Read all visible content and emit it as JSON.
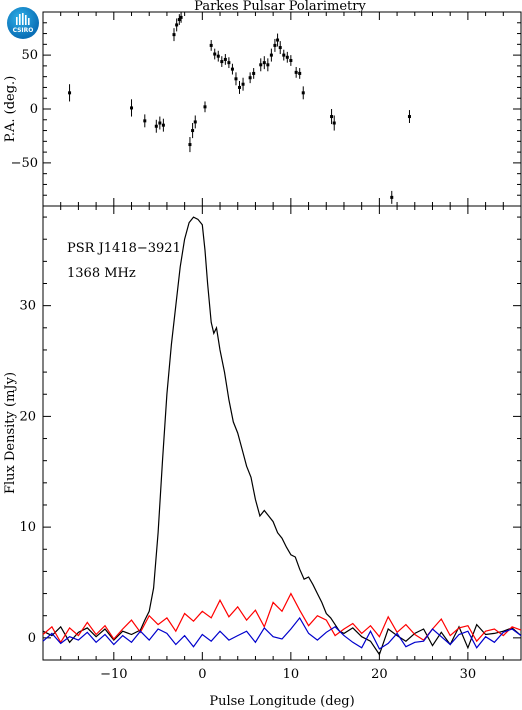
{
  "logo": {
    "text": "CSIRO",
    "color": "#0a6fb6"
  },
  "figure_title": "Parkes Pulsar Polarimetry",
  "chart_data": [
    {
      "type": "scatter",
      "title": "Parkes Pulsar Polarimetry",
      "xlabel": "",
      "ylabel": "P.A. (deg.)",
      "xlim": [
        -18,
        36
      ],
      "ylim": [
        -90,
        90
      ],
      "yticks": [
        -50,
        0,
        50
      ],
      "color": "#000000",
      "points": [
        {
          "x": -15.0,
          "y": 15,
          "err": 8
        },
        {
          "x": -8.0,
          "y": 1,
          "err": 8
        },
        {
          "x": -6.5,
          "y": -11,
          "err": 6
        },
        {
          "x": -5.2,
          "y": -16,
          "err": 6
        },
        {
          "x": -4.8,
          "y": -13,
          "err": 6
        },
        {
          "x": -4.4,
          "y": -15,
          "err": 6
        },
        {
          "x": -3.2,
          "y": 69,
          "err": 6
        },
        {
          "x": -2.9,
          "y": 78,
          "err": 6
        },
        {
          "x": -2.6,
          "y": 83,
          "err": 5
        },
        {
          "x": -2.4,
          "y": 85,
          "err": 5
        },
        {
          "x": -1.4,
          "y": -33,
          "err": 7
        },
        {
          "x": -1.1,
          "y": -20,
          "err": 7
        },
        {
          "x": -0.8,
          "y": -12,
          "err": 6
        },
        {
          "x": 0.3,
          "y": 2,
          "err": 5
        },
        {
          "x": 1.0,
          "y": 59,
          "err": 5
        },
        {
          "x": 1.4,
          "y": 51,
          "err": 5
        },
        {
          "x": 1.8,
          "y": 49,
          "err": 5
        },
        {
          "x": 2.2,
          "y": 44,
          "err": 5
        },
        {
          "x": 2.6,
          "y": 46,
          "err": 5
        },
        {
          "x": 3.0,
          "y": 43,
          "err": 5
        },
        {
          "x": 3.4,
          "y": 37,
          "err": 5
        },
        {
          "x": 3.8,
          "y": 28,
          "err": 6
        },
        {
          "x": 4.2,
          "y": 20,
          "err": 6
        },
        {
          "x": 4.6,
          "y": 23,
          "err": 6
        },
        {
          "x": 5.4,
          "y": 29,
          "err": 5
        },
        {
          "x": 5.8,
          "y": 33,
          "err": 5
        },
        {
          "x": 6.6,
          "y": 41,
          "err": 6
        },
        {
          "x": 7.0,
          "y": 43,
          "err": 6
        },
        {
          "x": 7.4,
          "y": 41,
          "err": 6
        },
        {
          "x": 7.8,
          "y": 50,
          "err": 6
        },
        {
          "x": 8.2,
          "y": 59,
          "err": 6
        },
        {
          "x": 8.5,
          "y": 64,
          "err": 6
        },
        {
          "x": 8.8,
          "y": 57,
          "err": 6
        },
        {
          "x": 9.2,
          "y": 50,
          "err": 5
        },
        {
          "x": 9.6,
          "y": 48,
          "err": 5
        },
        {
          "x": 10.0,
          "y": 45,
          "err": 5
        },
        {
          "x": 10.6,
          "y": 34,
          "err": 5
        },
        {
          "x": 11.0,
          "y": 33,
          "err": 5
        },
        {
          "x": 11.4,
          "y": 15,
          "err": 6
        },
        {
          "x": 14.6,
          "y": -7,
          "err": 7
        },
        {
          "x": 14.9,
          "y": -13,
          "err": 7
        },
        {
          "x": 21.4,
          "y": -82,
          "err": 6
        },
        {
          "x": 23.4,
          "y": -7,
          "err": 6
        }
      ]
    },
    {
      "type": "line",
      "xlabel": "Pulse Longitude (deg)",
      "ylabel": "Flux Density (mJy)",
      "xlim": [
        -18,
        36
      ],
      "ylim": [
        -2,
        39
      ],
      "xticks": [
        -10,
        0,
        10,
        20,
        30
      ],
      "yticks": [
        0,
        10,
        20,
        30
      ],
      "annotations": [
        "PSR J1418−3921",
        "1368 MHz"
      ],
      "series": [
        {
          "color": "#000000",
          "x": [
            -18,
            -17,
            -16,
            -15,
            -14,
            -13,
            -12,
            -11,
            -10,
            -9,
            -8,
            -7,
            -6.5,
            -6,
            -5.5,
            -5,
            -4.5,
            -4,
            -3.5,
            -3,
            -2.5,
            -2,
            -1.5,
            -1,
            -0.5,
            0,
            0.3,
            0.6,
            1,
            1.3,
            1.6,
            2,
            2.5,
            3,
            3.5,
            4,
            4.5,
            5,
            5.5,
            6,
            6.5,
            7,
            7.5,
            8,
            8.5,
            9,
            9.5,
            10,
            10.5,
            11,
            11.5,
            12,
            12.5,
            13,
            13.5,
            14,
            14.5,
            15,
            15.5,
            16,
            17,
            18,
            19,
            20,
            21,
            22,
            23,
            24,
            25,
            26,
            27,
            28,
            29,
            30,
            31,
            32,
            33,
            34,
            35,
            36
          ],
          "y": [
            0.6,
            0.2,
            1.0,
            -0.4,
            0.5,
            0.9,
            0.1,
            0.8,
            -0.2,
            0.6,
            0.3,
            0.7,
            1.6,
            2.4,
            4.5,
            9.5,
            16,
            22,
            26.5,
            30,
            33.5,
            36,
            37.5,
            38,
            37.8,
            37.3,
            35,
            32,
            28.5,
            27.5,
            28,
            26,
            24,
            21.5,
            19.5,
            18.5,
            17,
            15.5,
            14.5,
            12.5,
            11,
            11.5,
            11,
            10.5,
            9.5,
            9,
            8.2,
            7.5,
            7.3,
            6.2,
            5.3,
            5.5,
            4.8,
            4,
            3.2,
            2.2,
            1.8,
            1.2,
            0.6,
            0.4,
            0.9,
            0.1,
            -0.3,
            -1.5,
            0.8,
            0.2,
            -0.3,
            0.4,
            0.8,
            -0.7,
            0.5,
            -0.6,
            1.0,
            -0.9,
            1.2,
            0.3,
            0.4,
            0.6,
            0.9,
            0.2
          ]
        },
        {
          "color": "#ff0000",
          "x": [
            -18,
            -17,
            -16,
            -15,
            -14,
            -13,
            -12,
            -11,
            -10,
            -9,
            -8,
            -7,
            -6,
            -5,
            -4,
            -3,
            -2,
            -1,
            0,
            1,
            2,
            3,
            4,
            5,
            6,
            7,
            8,
            9,
            10,
            11,
            12,
            13,
            14,
            15,
            16,
            17,
            18,
            19,
            20,
            21,
            22,
            23,
            24,
            25,
            26,
            27,
            28,
            29,
            30,
            31,
            32,
            33,
            34,
            35,
            36
          ],
          "y": [
            0.3,
            1.0,
            -0.4,
            0.9,
            0.2,
            1.4,
            0.3,
            1.1,
            -0.1,
            0.8,
            1.6,
            0.5,
            2.0,
            1.2,
            1.8,
            0.6,
            2.2,
            1.5,
            2.4,
            1.8,
            3.4,
            1.9,
            2.8,
            1.6,
            2.5,
            1.0,
            3.2,
            2.4,
            4.0,
            2.5,
            1.1,
            2.0,
            1.6,
            0.2,
            0.8,
            1.3,
            0.4,
            1.1,
            0.1,
            1.9,
            0.5,
            1.2,
            0.3,
            -0.2,
            0.8,
            1.7,
            0.2,
            0.9,
            1.1,
            -0.3,
            0.6,
            0.8,
            0.2,
            1.0,
            0.7
          ]
        },
        {
          "color": "#0000cc",
          "x": [
            -18,
            -17,
            -16,
            -15,
            -14,
            -13,
            -12,
            -11,
            -10,
            -9,
            -8,
            -7,
            -6,
            -5,
            -4,
            -3,
            -2,
            -1,
            0,
            1,
            2,
            3,
            4,
            5,
            6,
            7,
            8,
            9,
            10,
            11,
            12,
            13,
            14,
            15,
            16,
            17,
            18,
            19,
            20,
            21,
            22,
            23,
            24,
            25,
            26,
            27,
            28,
            29,
            30,
            31,
            32,
            33,
            34,
            35,
            36
          ],
          "y": [
            -0.3,
            0.4,
            -0.5,
            0.1,
            -0.2,
            0.5,
            -0.4,
            0.3,
            -0.6,
            0.2,
            -0.4,
            0.6,
            -0.2,
            0.8,
            0.4,
            -0.6,
            0.2,
            -0.8,
            0.3,
            -0.3,
            0.6,
            -0.2,
            0.2,
            0.6,
            -0.4,
            0.9,
            0.1,
            -0.1,
            0.8,
            1.8,
            0.4,
            -0.2,
            0.5,
            1.0,
            0.2,
            -0.4,
            -0.9,
            0.6,
            -1.0,
            -0.5,
            0.4,
            -0.8,
            -0.4,
            -0.3,
            0.8,
            0.1,
            -0.6,
            0.3,
            0.6,
            -0.9,
            0.1,
            -0.4,
            0.5,
            0.8,
            0.2
          ]
        }
      ]
    }
  ]
}
